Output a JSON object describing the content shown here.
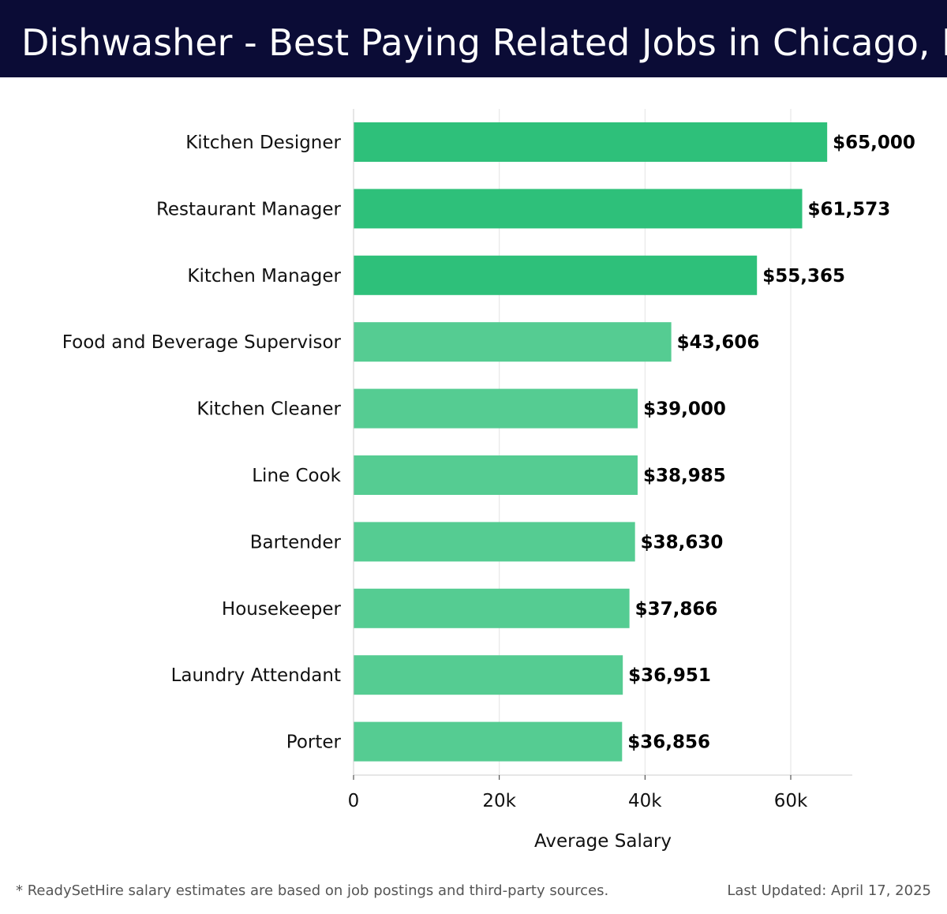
{
  "header": {
    "title": "Dishwasher - Best Paying Related Jobs in Chicago, IL"
  },
  "chart_data": {
    "type": "bar",
    "orientation": "horizontal",
    "categories": [
      "Kitchen Designer",
      "Restaurant Manager",
      "Kitchen Manager",
      "Food and Beverage Supervisor",
      "Kitchen Cleaner",
      "Line Cook",
      "Bartender",
      "Housekeeper",
      "Laundry Attendant",
      "Porter"
    ],
    "values": [
      65000,
      61573,
      55365,
      43606,
      39000,
      38985,
      38630,
      37866,
      36951,
      36856
    ],
    "value_labels": [
      "$65,000",
      "$61,573",
      "$55,365",
      "$43,606",
      "$39,000",
      "$38,985",
      "$38,630",
      "$37,866",
      "$36,951",
      "$36,856"
    ],
    "xlabel": "Average Salary",
    "ylabel": "",
    "xlim": [
      0,
      68500
    ],
    "xticks": [
      0,
      20000,
      40000,
      60000
    ],
    "xtick_labels": [
      "0",
      "20k",
      "40k",
      "60k"
    ],
    "grid": "vertical",
    "colors": {
      "top": "#2ec07a",
      "rest": "#55cc92",
      "header_bg": "#0b0c36"
    }
  },
  "footer": {
    "note": "* ReadySetHire salary estimates are based on job postings and third-party sources.",
    "updated": "Last Updated: April 17, 2025"
  }
}
